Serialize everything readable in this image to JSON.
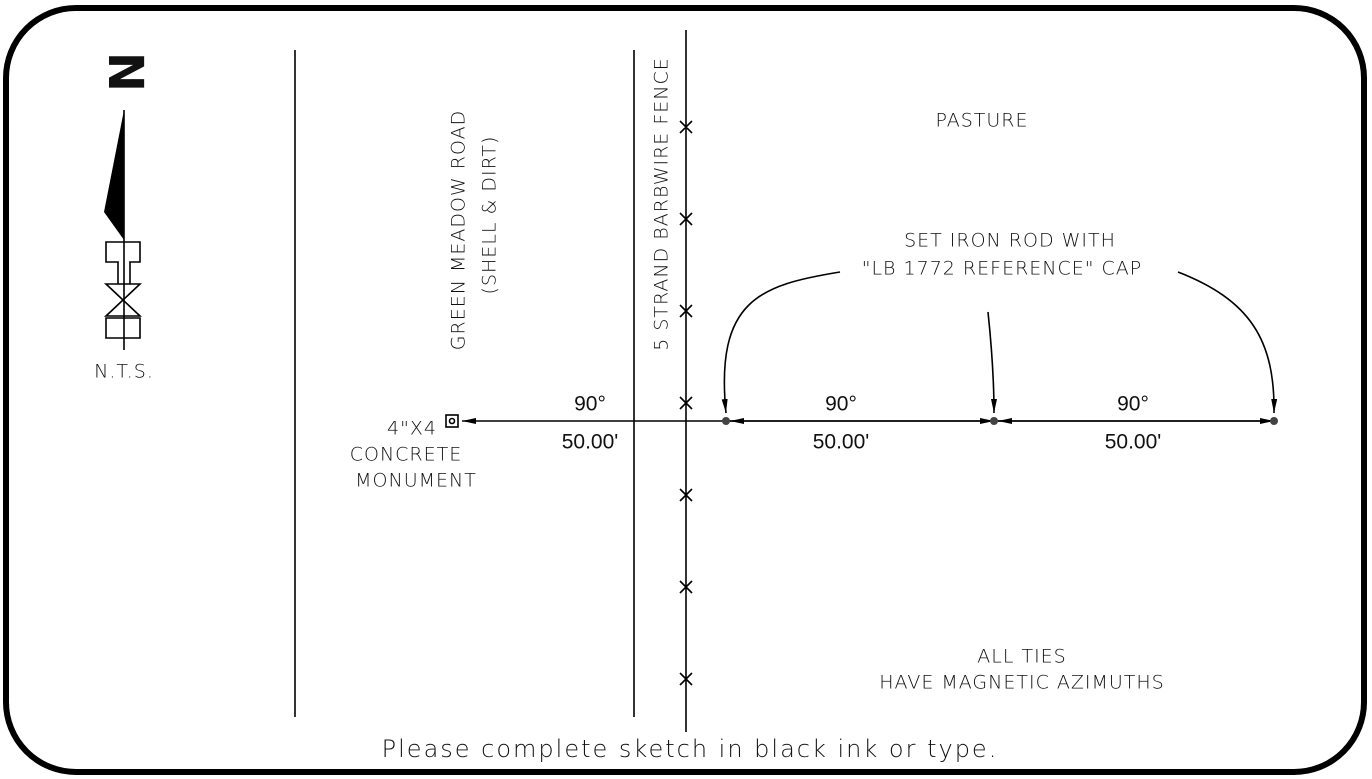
{
  "north_arrow": {
    "letter": "N",
    "scale_note": "N.T.S."
  },
  "road": {
    "name": "GREEN MEADOW ROAD",
    "surface": "(SHELL & DIRT)"
  },
  "fence": {
    "label": "5 STRAND BARBWIRE FENCE"
  },
  "area_label": "PASTURE",
  "rod_note": {
    "lines": [
      "SET IRON ROD WITH",
      "\"LB 1772 REFERENCE\" CAP"
    ]
  },
  "monument": {
    "lines": [
      "4\"X4",
      "CONCRETE",
      "MONUMENT"
    ]
  },
  "ties": [
    {
      "angle": "90°",
      "distance": "50.00'"
    },
    {
      "angle": "90°",
      "distance": "50.00'"
    },
    {
      "angle": "90°",
      "distance": "50.00'"
    }
  ],
  "note": {
    "lines": [
      "ALL TIES",
      "HAVE MAGNETIC AZIMUTHS"
    ]
  },
  "footer": "Please complete sketch in black ink or type."
}
